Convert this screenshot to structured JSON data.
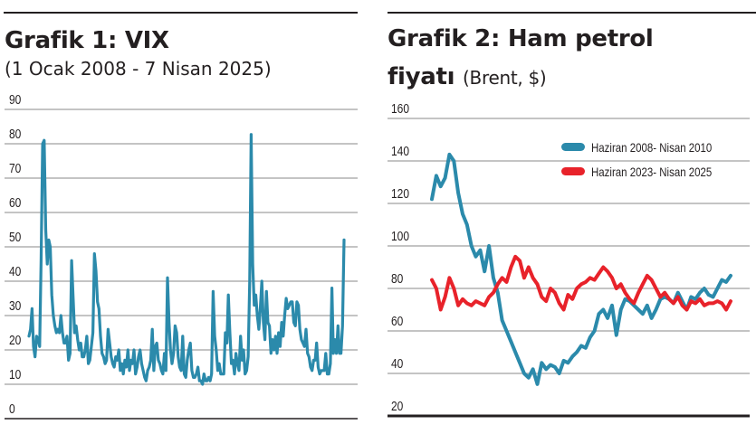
{
  "colors": {
    "vix": "#2b8aab",
    "brent_2008": "#2b8aab",
    "brent_2023": "#e8222a",
    "grid": "#8a8a8a",
    "axis": "#231f20"
  },
  "chart_data": [
    {
      "type": "line",
      "title": "Grafik 1: VIX",
      "subtitle": "(1 Ocak 2008 - 7 Nisan 2025)",
      "xlabel": "",
      "ylabel": "",
      "ylim": [
        0,
        90
      ],
      "yticks": [
        "0",
        "10",
        "20",
        "30",
        "40",
        "50",
        "60",
        "70",
        "80",
        "90"
      ],
      "grid": true,
      "x_range": [
        "2008-01",
        "2025-04"
      ],
      "series": [
        {
          "values": [
            24,
            26,
            32,
            21,
            18,
            24,
            23,
            21,
            46,
            80,
            81,
            55,
            45,
            52,
            50,
            36,
            30,
            27,
            25,
            26,
            25,
            30,
            25,
            22,
            22,
            24,
            17,
            19,
            46,
            35,
            25,
            27,
            23,
            20,
            22,
            18,
            18,
            20,
            24,
            16,
            17,
            21,
            25,
            48,
            43,
            34,
            32,
            24,
            19,
            18,
            16,
            17,
            26,
            22,
            18,
            16,
            15,
            18,
            17,
            20,
            14,
            16,
            13,
            17,
            15,
            20,
            14,
            17,
            16,
            20,
            13,
            15,
            18,
            20,
            16,
            14,
            12,
            11,
            14,
            15,
            17,
            26,
            14,
            21,
            22,
            17,
            16,
            14,
            13,
            19,
            14,
            41,
            28,
            20,
            16,
            19,
            27,
            25,
            18,
            15,
            14,
            24,
            13,
            12,
            17,
            20,
            22,
            14,
            12,
            12,
            13,
            15,
            11,
            11,
            10,
            13,
            11,
            11,
            12,
            11,
            13,
            37,
            24,
            20,
            14,
            16,
            13,
            13,
            13,
            25,
            22,
            36,
            25,
            16,
            17,
            13,
            19,
            16,
            14,
            24,
            17,
            20,
            13,
            14,
            18,
            40,
            82.7,
            45,
            33,
            36,
            30,
            26,
            32,
            40,
            28,
            23,
            37,
            28,
            27,
            19,
            23,
            20,
            24,
            19,
            25,
            21,
            28,
            24,
            30,
            35,
            32,
            33,
            34,
            34,
            28,
            27,
            34,
            33,
            26,
            23,
            22,
            21,
            26,
            19,
            18,
            15,
            14,
            17,
            17,
            22,
            15,
            13,
            14,
            14,
            14,
            19,
            13,
            13,
            16,
            38,
            19,
            23,
            19,
            27,
            19,
            19,
            27,
            52
          ]
        }
      ]
    },
    {
      "type": "line",
      "title": "Grafik 2: Ham petrol",
      "title_line2": "fiyatı",
      "subtitle": "(Brent, $)",
      "xlabel": "",
      "ylabel": "",
      "ylim": [
        20,
        160
      ],
      "yticks": [
        "20",
        "40",
        "60",
        "80",
        "100",
        "120",
        "140",
        "160"
      ],
      "grid": true,
      "legend": "top-right",
      "series": [
        {
          "name": "Haziran 2008- Nisan 2010",
          "values": [
            122,
            133,
            128,
            132,
            143,
            140,
            125,
            115,
            110,
            100,
            95,
            98,
            88,
            100,
            85,
            78,
            65,
            60,
            55,
            50,
            45,
            40,
            38,
            42,
            35,
            45,
            42,
            44,
            43,
            40,
            46,
            45,
            48,
            50,
            53,
            52,
            57,
            60,
            68,
            70,
            66,
            72,
            58,
            70,
            75,
            74,
            72,
            70,
            68,
            72,
            66,
            70,
            75,
            76,
            75,
            73,
            78,
            74,
            70,
            76,
            75,
            78,
            80,
            77,
            76,
            80,
            84,
            83,
            86
          ]
        },
        {
          "name": "Haziran 2023- Nisan 2025",
          "values": [
            84,
            80,
            70,
            76,
            85,
            80,
            72,
            75,
            73,
            72,
            74,
            73,
            72,
            76,
            78,
            82,
            85,
            83,
            90,
            95,
            93,
            85,
            90,
            85,
            82,
            76,
            74,
            80,
            78,
            73,
            70,
            77,
            75,
            80,
            82,
            83,
            85,
            84,
            87,
            90,
            88,
            85,
            80,
            82,
            78,
            75,
            73,
            78,
            82,
            86,
            84,
            80,
            76,
            78,
            75,
            73,
            76,
            72,
            70,
            74,
            73,
            75,
            72,
            73,
            73,
            74,
            73,
            70,
            74
          ]
        }
      ]
    }
  ]
}
